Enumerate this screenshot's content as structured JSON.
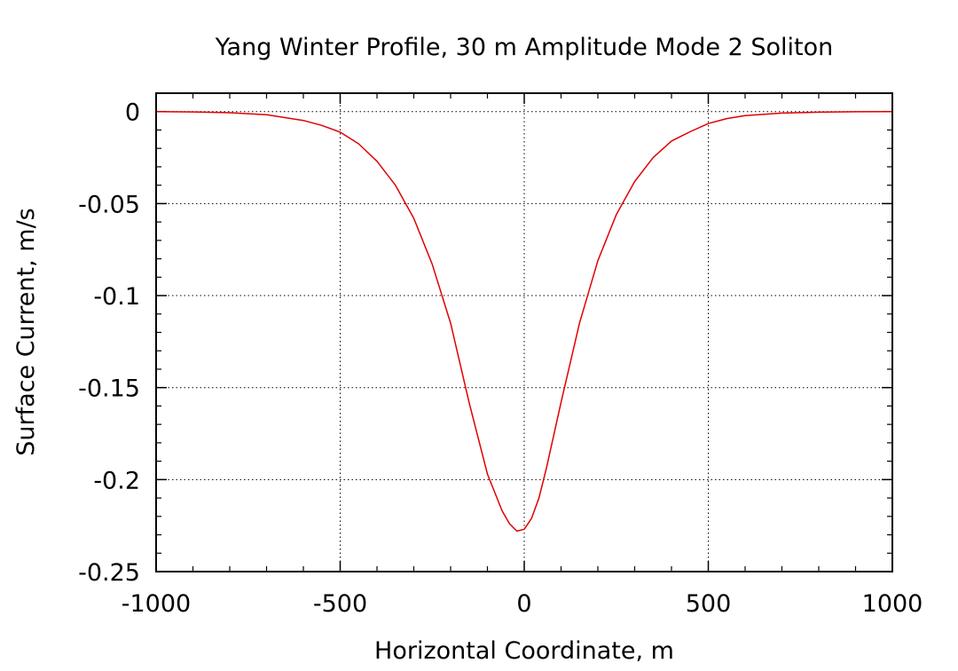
{
  "chart_data": {
    "type": "line",
    "title": "Yang Winter Profile, 30 m Amplitude Mode 2 Soliton",
    "xlabel": "Horizontal Coordinate, m",
    "ylabel": "Surface Current, m/s",
    "xlim": [
      -1000,
      1000
    ],
    "ylim": [
      -0.25,
      0.01
    ],
    "x_ticks": [
      -1000,
      -500,
      0,
      500,
      1000
    ],
    "x_tick_labels": [
      "-1000",
      "-500",
      "0",
      "500",
      "1000"
    ],
    "y_ticks": [
      0,
      -0.05,
      -0.1,
      -0.15,
      -0.2,
      -0.25
    ],
    "y_tick_labels": [
      "0",
      "-0.05",
      "-0.1",
      "-0.15",
      "-0.2",
      "-0.25"
    ],
    "grid": true,
    "series": [
      {
        "color": "#e00000",
        "x": [
          -1000,
          -900,
          -800,
          -700,
          -600,
          -550,
          -500,
          -450,
          -400,
          -350,
          -300,
          -250,
          -200,
          -150,
          -100,
          -60,
          -40,
          -20,
          0,
          20,
          40,
          60,
          100,
          150,
          200,
          250,
          300,
          350,
          400,
          450,
          500,
          550,
          600,
          700,
          800,
          900,
          1000
        ],
        "y": [
          0,
          -0.0002,
          -0.0006,
          -0.0017,
          -0.0048,
          -0.0075,
          -0.0112,
          -0.0175,
          -0.027,
          -0.04,
          -0.058,
          -0.083,
          -0.115,
          -0.158,
          -0.197,
          -0.217,
          -0.224,
          -0.228,
          -0.227,
          -0.221,
          -0.21,
          -0.194,
          -0.158,
          -0.115,
          -0.081,
          -0.056,
          -0.038,
          -0.025,
          -0.016,
          -0.011,
          -0.0065,
          -0.0038,
          -0.0022,
          -0.0008,
          -0.0003,
          -0.0001,
          0
        ]
      }
    ]
  }
}
